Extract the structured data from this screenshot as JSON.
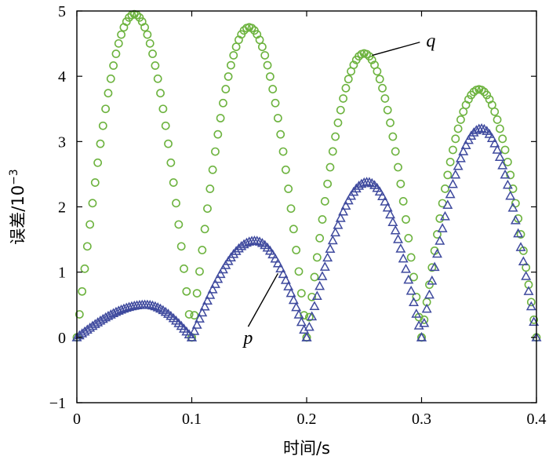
{
  "chart_data": {
    "type": "scatter",
    "xlabel": "时间/s",
    "ylabel_main": "误差/10",
    "ylabel_exp": "−3",
    "xlim": [
      0,
      0.4
    ],
    "ylim": [
      -1,
      5
    ],
    "xticks": [
      0,
      0.1,
      0.2,
      0.3,
      0.4
    ],
    "xtick_labels": [
      "0",
      "0.1",
      "0.2",
      "0.3",
      "0.4"
    ],
    "yticks": [
      -1,
      0,
      1,
      2,
      3,
      4,
      5
    ],
    "ytick_labels": [
      "−1",
      "0",
      "1",
      "2",
      "3",
      "4",
      "5"
    ],
    "grid": false,
    "series": [
      {
        "name": "q",
        "marker": "circle",
        "color": "#6db33f",
        "segments": [
          {
            "x0": 0.0,
            "x1": 0.1,
            "peak": 4.95
          },
          {
            "x0": 0.1,
            "x1": 0.2,
            "peak": 4.75
          },
          {
            "x0": 0.2,
            "x1": 0.3,
            "peak": 4.35
          },
          {
            "x0": 0.3,
            "x1": 0.4,
            "peak": 3.8
          }
        ]
      },
      {
        "name": "p",
        "marker": "triangle",
        "color": "#3f4a9e",
        "segments": [
          {
            "x0": 0.0,
            "x1": 0.1,
            "peak": 0.5,
            "peak_x": 0.06
          },
          {
            "x0": 0.1,
            "x1": 0.2,
            "peak": 1.48,
            "peak_x": 0.155
          },
          {
            "x0": 0.2,
            "x1": 0.3,
            "peak": 2.38,
            "peak_x": 0.253
          },
          {
            "x0": 0.3,
            "x1": 0.4,
            "peak": 3.2,
            "peak_x": 0.352
          }
        ]
      }
    ],
    "annotations": [
      {
        "text": "q",
        "series": "q",
        "point": [
          0.257,
          4.32
        ],
        "text_at": [
          0.304,
          4.45
        ]
      },
      {
        "text": "p",
        "series": "p",
        "point": [
          0.175,
          0.98
        ],
        "text_at": [
          0.145,
          -0.1
        ]
      }
    ]
  }
}
